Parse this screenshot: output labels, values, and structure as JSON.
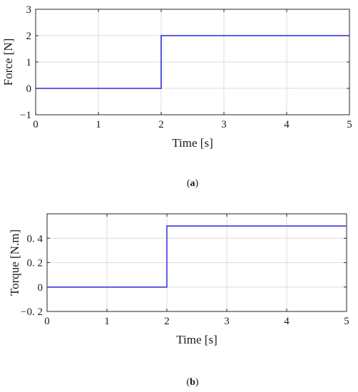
{
  "chart_data": [
    {
      "type": "line",
      "panel_label": "a",
      "ylabel": "Force [N]",
      "xlabel": "Time [s]",
      "xlim": [
        0,
        5
      ],
      "ylim": [
        -1,
        3
      ],
      "xticks": [
        0,
        1,
        2,
        3,
        4,
        5
      ],
      "yticks": [
        -1,
        0,
        1,
        2,
        3
      ],
      "xtick_labels": [
        "0",
        "1",
        "2",
        "3",
        "4",
        "5"
      ],
      "ytick_labels": [
        "−1",
        "0",
        "1",
        "2",
        "3"
      ],
      "grid": true,
      "series": [
        {
          "x": [
            0,
            2,
            2,
            5
          ],
          "y": [
            0,
            0,
            2,
            2
          ],
          "color": "#2a2ad8"
        }
      ]
    },
    {
      "type": "line",
      "panel_label": "b",
      "ylabel": "Torque [N.m]",
      "xlabel": "Time [s]",
      "xlim": [
        0,
        5
      ],
      "ylim": [
        -0.2,
        0.6
      ],
      "xticks": [
        0,
        1,
        2,
        3,
        4,
        5
      ],
      "yticks": [
        -0.2,
        0,
        0.2,
        0.4
      ],
      "xtick_labels": [
        "0",
        "1",
        "2",
        "3",
        "4",
        "5"
      ],
      "ytick_labels": [
        "−0. 2",
        "0",
        "0. 2",
        "0. 4"
      ],
      "grid": true,
      "series": [
        {
          "x": [
            0,
            2,
            2,
            5
          ],
          "y": [
            0,
            0,
            0.5,
            0.5
          ],
          "color": "#3b3bd6"
        }
      ]
    }
  ],
  "captions": [
    "a",
    "b"
  ]
}
